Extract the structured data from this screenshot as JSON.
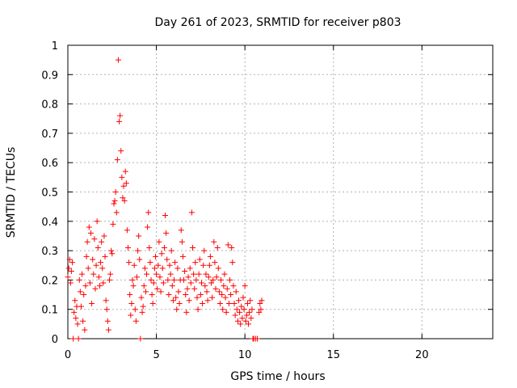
{
  "chart_data": {
    "type": "scatter",
    "title": "Day 261 of 2023, SRMTID for receiver p803",
    "xlabel": "GPS time / hours",
    "ylabel": "SRMTID / TECUs",
    "xlim": [
      0,
      24
    ],
    "ylim": [
      0,
      1
    ],
    "xticks": [
      "0",
      "5",
      "10",
      "15",
      "20"
    ],
    "yticks": [
      "0",
      "0.1",
      "0.2",
      "0.3",
      "0.4",
      "0.5",
      "0.6",
      "0.7",
      "0.8",
      "0.9",
      "1"
    ],
    "grid": true,
    "marker": "plus",
    "color": "#ff0000",
    "series": [
      {
        "name": "SRMTID",
        "points": [
          [
            0.0,
            0.21
          ],
          [
            0.05,
            0.24
          ],
          [
            0.1,
            0.27
          ],
          [
            0.15,
            0.19
          ],
          [
            0.2,
            0.23
          ],
          [
            0.25,
            0.26
          ],
          [
            0.3,
            0.0
          ],
          [
            0.35,
            0.09
          ],
          [
            0.4,
            0.13
          ],
          [
            0.45,
            0.07
          ],
          [
            0.5,
            0.11
          ],
          [
            0.55,
            0.05
          ],
          [
            0.6,
            0.0
          ],
          [
            0.65,
            0.2
          ],
          [
            0.7,
            0.16
          ],
          [
            0.75,
            0.11
          ],
          [
            0.8,
            0.22
          ],
          [
            0.85,
            0.06
          ],
          [
            0.9,
            0.15
          ],
          [
            0.95,
            0.03
          ],
          [
            1.0,
            0.18
          ],
          [
            1.05,
            0.28
          ],
          [
            1.1,
            0.33
          ],
          [
            1.15,
            0.24
          ],
          [
            1.2,
            0.38
          ],
          [
            1.25,
            0.19
          ],
          [
            1.3,
            0.36
          ],
          [
            1.35,
            0.12
          ],
          [
            1.4,
            0.27
          ],
          [
            1.45,
            0.22
          ],
          [
            1.5,
            0.34
          ],
          [
            1.55,
            0.17
          ],
          [
            1.6,
            0.25
          ],
          [
            1.65,
            0.4
          ],
          [
            1.7,
            0.31
          ],
          [
            1.75,
            0.21
          ],
          [
            1.8,
            0.18
          ],
          [
            1.85,
            0.26
          ],
          [
            1.9,
            0.33
          ],
          [
            1.95,
            0.24
          ],
          [
            2.0,
            0.19
          ],
          [
            2.05,
            0.35
          ],
          [
            2.1,
            0.28
          ],
          [
            2.15,
            0.13
          ],
          [
            2.2,
            0.1
          ],
          [
            2.25,
            0.06
          ],
          [
            2.3,
            0.03
          ],
          [
            2.35,
            0.2
          ],
          [
            2.4,
            0.22
          ],
          [
            2.45,
            0.3
          ],
          [
            2.5,
            0.29
          ],
          [
            2.55,
            0.39
          ],
          [
            2.6,
            0.46
          ],
          [
            2.65,
            0.47
          ],
          [
            2.7,
            0.5
          ],
          [
            2.75,
            0.43
          ],
          [
            2.8,
            0.61
          ],
          [
            2.85,
            0.95
          ],
          [
            2.9,
            0.74
          ],
          [
            2.95,
            0.76
          ],
          [
            3.0,
            0.64
          ],
          [
            3.05,
            0.55
          ],
          [
            3.1,
            0.48
          ],
          [
            3.15,
            0.52
          ],
          [
            3.2,
            0.47
          ],
          [
            3.25,
            0.57
          ],
          [
            3.3,
            0.53
          ],
          [
            3.35,
            0.37
          ],
          [
            3.4,
            0.31
          ],
          [
            3.45,
            0.26
          ],
          [
            3.5,
            0.15
          ],
          [
            3.55,
            0.08
          ],
          [
            3.6,
            0.12
          ],
          [
            3.65,
            0.2
          ],
          [
            3.7,
            0.18
          ],
          [
            3.75,
            0.25
          ],
          [
            3.8,
            0.1
          ],
          [
            3.85,
            0.06
          ],
          [
            3.9,
            0.21
          ],
          [
            3.95,
            0.3
          ],
          [
            4.0,
            0.35
          ],
          [
            4.05,
            0.27
          ],
          [
            4.1,
            0.0
          ],
          [
            4.15,
            0.14
          ],
          [
            4.2,
            0.09
          ],
          [
            4.25,
            0.11
          ],
          [
            4.3,
            0.18
          ],
          [
            4.35,
            0.24
          ],
          [
            4.4,
            0.16
          ],
          [
            4.45,
            0.22
          ],
          [
            4.5,
            0.38
          ],
          [
            4.55,
            0.43
          ],
          [
            4.6,
            0.31
          ],
          [
            4.65,
            0.26
          ],
          [
            4.7,
            0.2
          ],
          [
            4.75,
            0.15
          ],
          [
            4.8,
            0.12
          ],
          [
            4.85,
            0.19
          ],
          [
            4.9,
            0.24
          ],
          [
            4.95,
            0.28
          ],
          [
            5.0,
            0.22
          ],
          [
            5.05,
            0.17
          ],
          [
            5.1,
            0.25
          ],
          [
            5.15,
            0.33
          ],
          [
            5.2,
            0.21
          ],
          [
            5.25,
            0.16
          ],
          [
            5.3,
            0.29
          ],
          [
            5.35,
            0.24
          ],
          [
            5.4,
            0.19
          ],
          [
            5.45,
            0.31
          ],
          [
            5.5,
            0.42
          ],
          [
            5.55,
            0.36
          ],
          [
            5.6,
            0.27
          ],
          [
            5.65,
            0.2
          ],
          [
            5.7,
            0.15
          ],
          [
            5.75,
            0.25
          ],
          [
            5.8,
            0.22
          ],
          [
            5.85,
            0.3
          ],
          [
            5.9,
            0.18
          ],
          [
            5.95,
            0.13
          ],
          [
            6.0,
            0.2
          ],
          [
            6.05,
            0.26
          ],
          [
            6.1,
            0.14
          ],
          [
            6.15,
            0.1
          ],
          [
            6.2,
            0.24
          ],
          [
            6.25,
            0.16
          ],
          [
            6.3,
            0.12
          ],
          [
            6.35,
            0.2
          ],
          [
            6.4,
            0.37
          ],
          [
            6.45,
            0.33
          ],
          [
            6.5,
            0.28
          ],
          [
            6.55,
            0.2
          ],
          [
            6.6,
            0.23
          ],
          [
            6.65,
            0.15
          ],
          [
            6.7,
            0.09
          ],
          [
            6.75,
            0.17
          ],
          [
            6.8,
            0.21
          ],
          [
            6.85,
            0.13
          ],
          [
            6.9,
            0.24
          ],
          [
            6.95,
            0.19
          ],
          [
            7.0,
            0.43
          ],
          [
            7.05,
            0.31
          ],
          [
            7.1,
            0.22
          ],
          [
            7.15,
            0.17
          ],
          [
            7.2,
            0.26
          ],
          [
            7.25,
            0.2
          ],
          [
            7.3,
            0.14
          ],
          [
            7.35,
            0.1
          ],
          [
            7.4,
            0.22
          ],
          [
            7.45,
            0.27
          ],
          [
            7.5,
            0.15
          ],
          [
            7.55,
            0.19
          ],
          [
            7.6,
            0.12
          ],
          [
            7.65,
            0.25
          ],
          [
            7.7,
            0.3
          ],
          [
            7.75,
            0.18
          ],
          [
            7.8,
            0.22
          ],
          [
            7.85,
            0.16
          ],
          [
            7.9,
            0.13
          ],
          [
            7.95,
            0.21
          ],
          [
            8.0,
            0.25
          ],
          [
            8.05,
            0.28
          ],
          [
            8.1,
            0.19
          ],
          [
            8.15,
            0.14
          ],
          [
            8.2,
            0.2
          ],
          [
            8.25,
            0.33
          ],
          [
            8.3,
            0.26
          ],
          [
            8.35,
            0.17
          ],
          [
            8.4,
            0.21
          ],
          [
            8.45,
            0.31
          ],
          [
            8.5,
            0.24
          ],
          [
            8.55,
            0.16
          ],
          [
            8.6,
            0.12
          ],
          [
            8.65,
            0.2
          ],
          [
            8.7,
            0.15
          ],
          [
            8.75,
            0.1
          ],
          [
            8.8,
            0.18
          ],
          [
            8.85,
            0.22
          ],
          [
            8.9,
            0.14
          ],
          [
            8.95,
            0.09
          ],
          [
            9.0,
            0.17
          ],
          [
            9.05,
            0.32
          ],
          [
            9.1,
            0.12
          ],
          [
            9.15,
            0.2
          ],
          [
            9.2,
            0.15
          ],
          [
            9.25,
            0.31
          ],
          [
            9.3,
            0.26
          ],
          [
            9.35,
            0.18
          ],
          [
            9.4,
            0.12
          ],
          [
            9.45,
            0.08
          ],
          [
            9.5,
            0.16
          ],
          [
            9.55,
            0.1
          ],
          [
            9.6,
            0.06
          ],
          [
            9.65,
            0.13
          ],
          [
            9.7,
            0.09
          ],
          [
            9.75,
            0.05
          ],
          [
            9.8,
            0.11
          ],
          [
            9.85,
            0.07
          ],
          [
            9.9,
            0.14
          ],
          [
            9.95,
            0.1
          ],
          [
            10.0,
            0.18
          ],
          [
            10.05,
            0.06
          ],
          [
            10.1,
            0.08
          ],
          [
            10.15,
            0.12
          ],
          [
            10.2,
            0.05
          ],
          [
            10.25,
            0.09
          ],
          [
            10.3,
            0.13
          ],
          [
            10.35,
            0.07
          ],
          [
            10.4,
            0.1
          ],
          [
            10.45,
            0.0
          ],
          [
            10.5,
            0.0
          ],
          [
            10.6,
            0.0
          ],
          [
            10.7,
            0.0
          ],
          [
            10.8,
            0.09
          ],
          [
            10.85,
            0.12
          ],
          [
            10.9,
            0.1
          ],
          [
            10.95,
            0.13
          ]
        ]
      }
    ]
  }
}
